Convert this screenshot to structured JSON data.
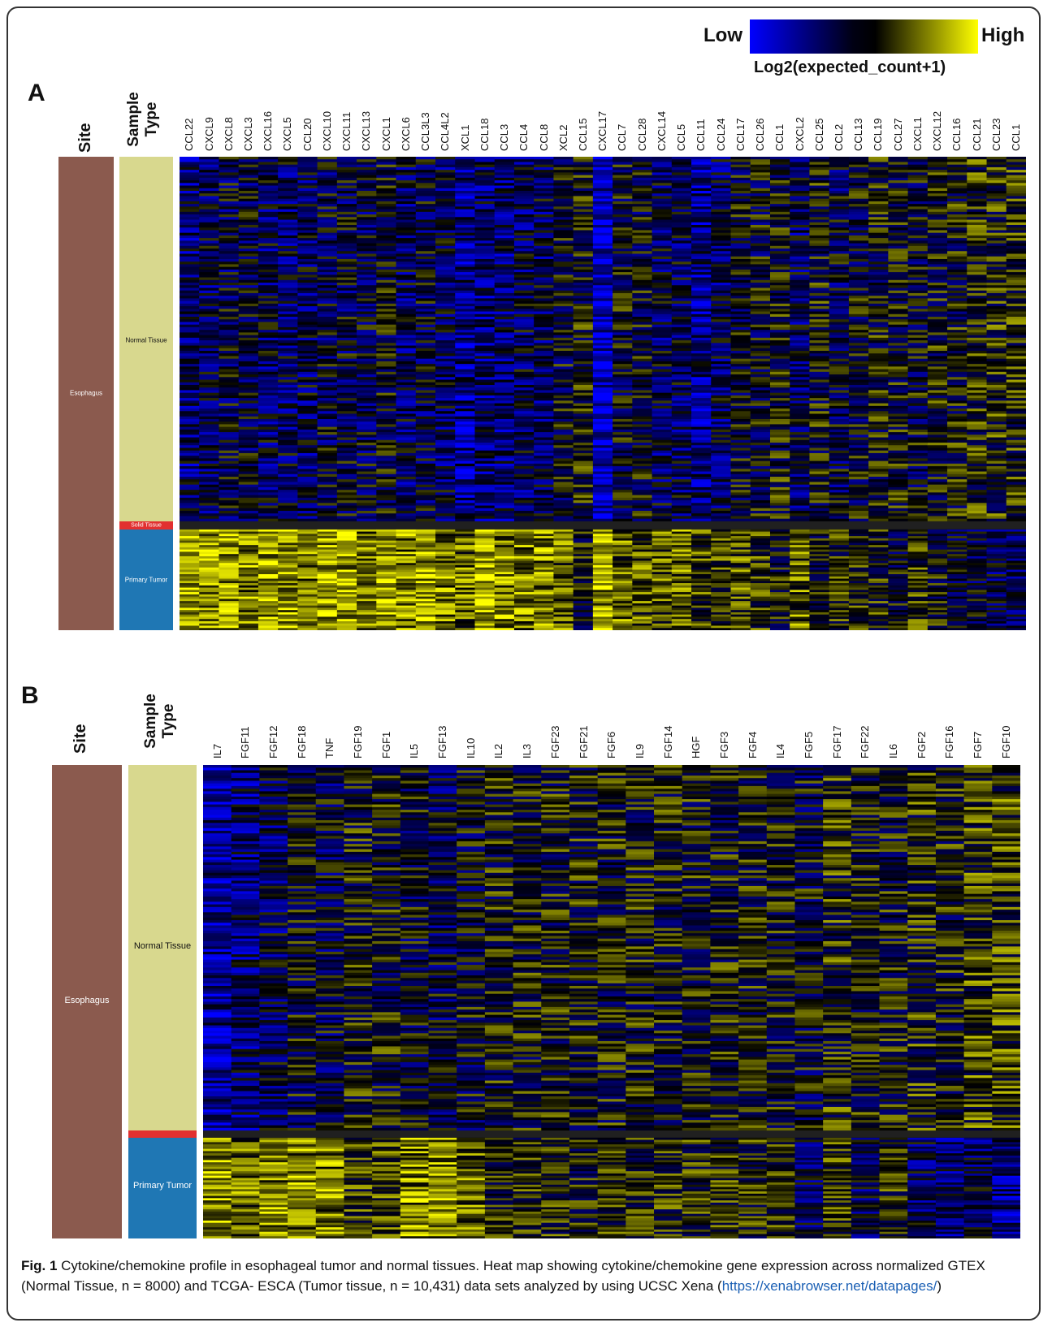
{
  "legend": {
    "low": "Low",
    "high": "High",
    "title": "Log2(expected_count+1)",
    "colors": [
      "#0000ff",
      "#000000",
      "#ffff00"
    ]
  },
  "panel_a": {
    "letter": "A",
    "site_header": "Site",
    "sample_header": "Sample Type",
    "site_value": "Esophagus",
    "normal": "Normal Tissue",
    "solid": "Solid Tissue",
    "primary": "Primary Tumor"
  },
  "panel_b": {
    "letter": "B",
    "site_header": "Site",
    "sample_header": "Sample Type",
    "site_value": "Esophagus",
    "normal": "Normal Tissue",
    "primary": "Primary Tumor"
  },
  "colors": {
    "site": "#8b5a4e",
    "normal": "#d8d88e",
    "solid": "#e23030",
    "primary": "#1f77b4"
  },
  "caption": {
    "fig": "Fig. 1",
    "text_before_link": "Cytokine/chemokine profile in esophageal tumor and normal tissues. Heat map showing cytokine/chemokine gene expression across normalized GTEX (Normal Tissue, n = 8000) and TCGA- ESCA (Tumor tissue, n = 10,431) data sets analyzed by using UCSC Xena (",
    "link": "https://xenabrowser.net/datapages/",
    "after": ")"
  },
  "chart_data": [
    {
      "type": "heatmap",
      "title": "",
      "color_scale": {
        "label": "Log2(expected_count+1)",
        "low": "Low",
        "high": "High"
      },
      "genes": [
        "CCL22",
        "CXCL9",
        "CXCL8",
        "CXCL3",
        "CXCL16",
        "CXCL5",
        "CCL20",
        "CXCL10",
        "CXCL11",
        "CXCL13",
        "CXCL1",
        "CXCL6",
        "CCL3L3",
        "CCL4L2",
        "XCL1",
        "CCL18",
        "CCL3",
        "CCL4",
        "CCL8",
        "XCL2",
        "CCL15",
        "CXCL17",
        "CCL7",
        "CCL28",
        "CXCL14",
        "CCL5",
        "CCL11",
        "CCL24",
        "CCL17",
        "CCL26",
        "CCL1",
        "CXCL2",
        "CCL25",
        "CCL2",
        "CCL13",
        "CCL19",
        "CCL27",
        "CXCL1",
        "CXCL12",
        "CCL16",
        "CCL21",
        "CCL23",
        "CCL1"
      ],
      "sample_groups": [
        "Normal Tissue",
        "Solid Tissue",
        "Primary Tumor"
      ],
      "site": "Esophagus",
      "group_mean_levels": {
        "Normal Tissue": [
          0.3,
          0.35,
          0.4,
          0.4,
          0.35,
          0.35,
          0.35,
          0.4,
          0.4,
          0.4,
          0.45,
          0.35,
          0.4,
          0.35,
          0.25,
          0.3,
          0.3,
          0.35,
          0.35,
          0.45,
          0.5,
          0.1,
          0.45,
          0.45,
          0.35,
          0.35,
          0.25,
          0.35,
          0.45,
          0.45,
          0.5,
          0.35,
          0.5,
          0.4,
          0.45,
          0.5,
          0.5,
          0.45,
          0.5,
          0.5,
          0.55,
          0.55,
          0.55
        ],
        "Primary Tumor": [
          0.85,
          0.8,
          0.8,
          0.75,
          0.8,
          0.8,
          0.75,
          0.8,
          0.8,
          0.75,
          0.8,
          0.75,
          0.8,
          0.75,
          0.7,
          0.85,
          0.75,
          0.75,
          0.75,
          0.7,
          0.5,
          0.8,
          0.7,
          0.65,
          0.65,
          0.7,
          0.6,
          0.6,
          0.65,
          0.6,
          0.5,
          0.7,
          0.5,
          0.55,
          0.55,
          0.55,
          0.45,
          0.6,
          0.5,
          0.4,
          0.4,
          0.35,
          0.3
        ]
      }
    },
    {
      "type": "heatmap",
      "title": "",
      "color_scale": {
        "label": "Log2(expected_count+1)",
        "low": "Low",
        "high": "High"
      },
      "genes": [
        "IL7",
        "FGF11",
        "FGF12",
        "FGF18",
        "TNF",
        "FGF19",
        "FGF1",
        "IL5",
        "FGF13",
        "IL10",
        "IL2",
        "IL3",
        "FGF23",
        "FGF21",
        "FGF6",
        "IL9",
        "FGF14",
        "HGF",
        "FGF3",
        "FGF4",
        "IL4",
        "FGF5",
        "FGF17",
        "FGF22",
        "IL6",
        "FGF2",
        "FGF16",
        "FGF7",
        "FGF10"
      ],
      "sample_groups": [
        "Normal Tissue",
        "Primary Tumor"
      ],
      "site": "Esophagus",
      "group_mean_levels": {
        "Normal Tissue": [
          0.2,
          0.3,
          0.35,
          0.45,
          0.4,
          0.5,
          0.5,
          0.45,
          0.4,
          0.45,
          0.5,
          0.5,
          0.5,
          0.5,
          0.5,
          0.5,
          0.5,
          0.5,
          0.5,
          0.5,
          0.5,
          0.45,
          0.55,
          0.5,
          0.5,
          0.55,
          0.5,
          0.6,
          0.6
        ],
        "Primary Tumor": [
          0.8,
          0.7,
          0.75,
          0.75,
          0.75,
          0.6,
          0.6,
          0.75,
          0.75,
          0.7,
          0.55,
          0.55,
          0.55,
          0.5,
          0.55,
          0.55,
          0.55,
          0.55,
          0.55,
          0.55,
          0.55,
          0.35,
          0.6,
          0.35,
          0.55,
          0.35,
          0.3,
          0.35,
          0.25
        ]
      }
    }
  ]
}
